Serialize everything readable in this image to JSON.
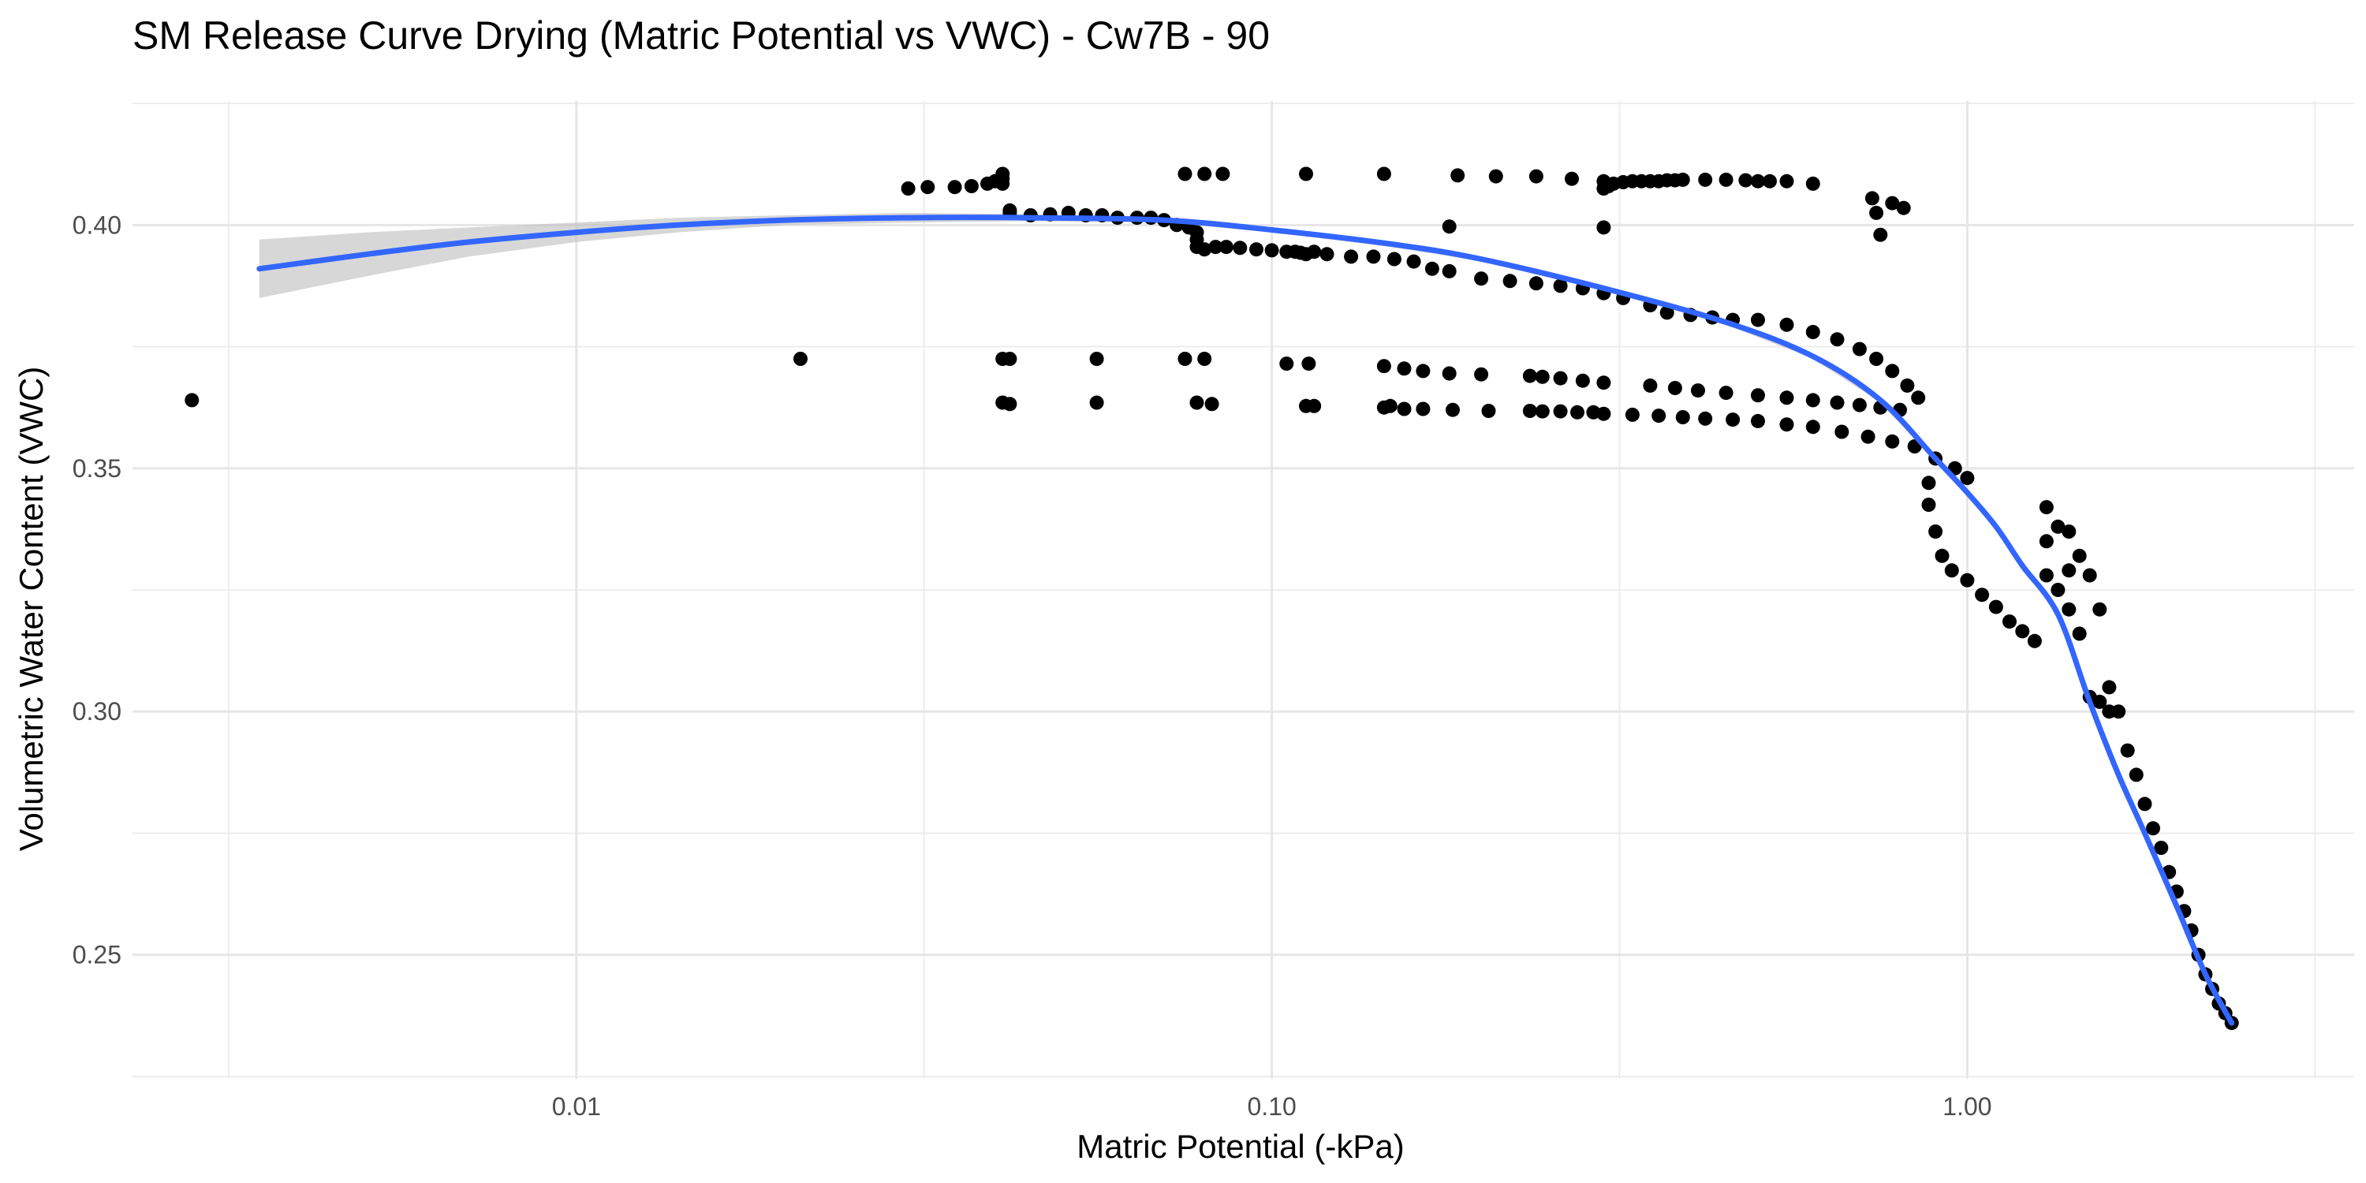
{
  "chart_data": {
    "type": "scatter",
    "title": "SM Release Curve Drying (Matric Potential vs VWC) - Cw7B - 90",
    "xlabel": "Matric Potential (-kPa)",
    "ylabel": "Volumetric Water Content (VWC)",
    "x_scale": "log10",
    "xlim": [
      0.0023,
      3.6
    ],
    "ylim": [
      0.2245,
      0.4255
    ],
    "x_ticks": [
      {
        "value": 0.01,
        "label": "0.01"
      },
      {
        "value": 0.1,
        "label": "0.10"
      },
      {
        "value": 1.0,
        "label": "1.00"
      }
    ],
    "x_minor_ticks": [
      0.003162,
      0.03162,
      0.3162,
      3.162
    ],
    "y_ticks": [
      {
        "value": 0.25,
        "label": "0.25"
      },
      {
        "value": 0.3,
        "label": "0.30"
      },
      {
        "value": 0.35,
        "label": "0.35"
      },
      {
        "value": 0.4,
        "label": "0.40"
      }
    ],
    "y_minor_ticks": [
      0.225,
      0.275,
      0.325,
      0.375,
      0.425
    ],
    "grid": true,
    "legend": "none",
    "point_color": "#000000",
    "trend": {
      "method": "smooth",
      "color": "#3366FF",
      "band_color": "#bdbdbd",
      "x": [
        0.0035,
        0.005,
        0.007,
        0.01,
        0.014,
        0.02,
        0.03,
        0.045,
        0.07,
        0.1,
        0.15,
        0.2,
        0.3,
        0.45,
        0.6,
        0.75,
        0.9,
        1.0,
        1.1,
        1.2,
        1.35,
        1.5,
        1.65,
        1.8,
        2.0,
        2.2,
        2.4
      ],
      "y": [
        0.391,
        0.394,
        0.3965,
        0.3985,
        0.4,
        0.401,
        0.4015,
        0.4015,
        0.401,
        0.399,
        0.396,
        0.393,
        0.387,
        0.38,
        0.373,
        0.364,
        0.352,
        0.345,
        0.338,
        0.33,
        0.32,
        0.302,
        0.287,
        0.275,
        0.26,
        0.246,
        0.236
      ],
      "upper": [
        0.397,
        0.3985,
        0.3995,
        0.4005,
        0.4015,
        0.402,
        0.4025,
        0.4022,
        0.4015,
        0.3995,
        0.3966,
        0.3935,
        0.3875,
        0.3805,
        0.3735,
        0.3645,
        0.3525,
        0.3455,
        0.3385,
        0.3305,
        0.3205,
        0.3025,
        0.2875,
        0.2755,
        0.2605,
        0.2467,
        0.2368
      ],
      "lower": [
        0.385,
        0.3895,
        0.3935,
        0.3965,
        0.3985,
        0.4,
        0.4005,
        0.4008,
        0.4005,
        0.3985,
        0.3954,
        0.3925,
        0.3865,
        0.3795,
        0.3725,
        0.3635,
        0.3515,
        0.3445,
        0.3375,
        0.3295,
        0.3195,
        0.3015,
        0.2865,
        0.2745,
        0.2595,
        0.2453,
        0.2352
      ]
    },
    "series": [
      {
        "x": [
          0.0028,
          0.021,
          0.041,
          0.042,
          0.056,
          0.075,
          0.08,
          0.105,
          0.113,
          0.145,
          0.155,
          0.165,
          0.18,
          0.2,
          0.235,
          0.245,
          0.26,
          0.28,
          0.3,
          0.35,
          0.38,
          0.41,
          0.45,
          0.5,
          0.55,
          0.6,
          0.65,
          0.7,
          0.75,
          0.8
        ],
        "y": [
          0.364,
          0.3725,
          0.3725,
          0.3725,
          0.3725,
          0.3725,
          0.3725,
          0.3715,
          0.3715,
          0.371,
          0.3705,
          0.37,
          0.3695,
          0.3693,
          0.369,
          0.3688,
          0.3685,
          0.368,
          0.3676,
          0.367,
          0.3665,
          0.366,
          0.3655,
          0.365,
          0.3645,
          0.364,
          0.3635,
          0.363,
          0.3625,
          0.362
        ]
      },
      {
        "x": [
          0.041,
          0.042,
          0.056,
          0.078,
          0.082,
          0.112,
          0.115,
          0.145,
          0.148,
          0.155,
          0.165,
          0.182,
          0.205,
          0.235,
          0.245,
          0.26,
          0.275,
          0.29,
          0.3,
          0.33,
          0.36,
          0.39,
          0.42,
          0.46,
          0.5,
          0.55,
          0.6,
          0.66,
          0.72,
          0.78,
          0.84,
          0.9,
          0.96,
          1.0
        ],
        "y": [
          0.3635,
          0.3632,
          0.3635,
          0.3635,
          0.3632,
          0.3628,
          0.3628,
          0.3625,
          0.3628,
          0.3622,
          0.3622,
          0.362,
          0.3618,
          0.3618,
          0.3617,
          0.3617,
          0.3615,
          0.3615,
          0.3612,
          0.361,
          0.3608,
          0.3605,
          0.3602,
          0.36,
          0.3597,
          0.359,
          0.3585,
          0.3575,
          0.3565,
          0.3555,
          0.3545,
          0.352,
          0.35,
          0.348
        ]
      },
      {
        "x": [
          0.03,
          0.032,
          0.035,
          0.037,
          0.039,
          0.04,
          0.041,
          0.041,
          0.041,
          0.042,
          0.042,
          0.045,
          0.048,
          0.051,
          0.054,
          0.057,
          0.06,
          0.064,
          0.067,
          0.07,
          0.073,
          0.076,
          0.078,
          0.078,
          0.078,
          0.08,
          0.083,
          0.086,
          0.09,
          0.095,
          0.1,
          0.105,
          0.108,
          0.11,
          0.112,
          0.115,
          0.12,
          0.13,
          0.14,
          0.15,
          0.16,
          0.17,
          0.18,
          0.2,
          0.22,
          0.24,
          0.26,
          0.28,
          0.3,
          0.32,
          0.35,
          0.37,
          0.4,
          0.43,
          0.46,
          0.5,
          0.55,
          0.6,
          0.65,
          0.7,
          0.74,
          0.78,
          0.82,
          0.85
        ],
        "y": [
          0.4075,
          0.4078,
          0.4078,
          0.408,
          0.4085,
          0.409,
          0.4095,
          0.4105,
          0.4085,
          0.403,
          0.4025,
          0.402,
          0.4022,
          0.4025,
          0.402,
          0.402,
          0.4015,
          0.4015,
          0.4015,
          0.401,
          0.4,
          0.3995,
          0.3985,
          0.397,
          0.3955,
          0.395,
          0.3955,
          0.3955,
          0.3953,
          0.395,
          0.3948,
          0.3945,
          0.3945,
          0.3943,
          0.394,
          0.3945,
          0.394,
          0.3935,
          0.3935,
          0.393,
          0.3925,
          0.391,
          0.3905,
          0.389,
          0.3885,
          0.388,
          0.3875,
          0.387,
          0.386,
          0.385,
          0.3835,
          0.382,
          0.3815,
          0.381,
          0.3805,
          0.3805,
          0.3795,
          0.378,
          0.3765,
          0.3745,
          0.3725,
          0.37,
          0.367,
          0.3645
        ]
      },
      {
        "x": [
          0.075,
          0.08,
          0.085,
          0.112,
          0.145,
          0.185,
          0.21,
          0.24,
          0.27,
          0.3,
          0.3,
          0.305,
          0.31,
          0.32,
          0.33,
          0.34,
          0.35,
          0.36,
          0.37,
          0.38,
          0.39,
          0.42,
          0.45,
          0.48,
          0.5,
          0.52,
          0.55,
          0.6,
          0.73,
          0.74,
          0.75,
          0.78,
          0.81
        ],
        "y": [
          0.4105,
          0.4105,
          0.4105,
          0.4105,
          0.4105,
          0.4102,
          0.41,
          0.41,
          0.4095,
          0.409,
          0.4075,
          0.408,
          0.4085,
          0.4088,
          0.409,
          0.409,
          0.409,
          0.409,
          0.4092,
          0.4092,
          0.4093,
          0.4093,
          0.4093,
          0.4092,
          0.409,
          0.409,
          0.409,
          0.4085,
          0.4055,
          0.4025,
          0.398,
          0.4045,
          0.4035
        ]
      },
      {
        "x": [
          0.18,
          0.3
        ],
        "y": [
          0.3997,
          0.3995
        ]
      },
      {
        "x": [
          0.88,
          0.88,
          0.9,
          0.92,
          0.95,
          1.0,
          1.05,
          1.1,
          1.15,
          1.2,
          1.25,
          1.3,
          1.3,
          1.3,
          1.35,
          1.35,
          1.4,
          1.4,
          1.4,
          1.45,
          1.45,
          1.5,
          1.5,
          1.55,
          1.55,
          1.6,
          1.6,
          1.65,
          1.7,
          1.75,
          1.8,
          1.85,
          1.9,
          1.95,
          2.0,
          2.05,
          2.1,
          2.15,
          2.2,
          2.25,
          2.3,
          2.35,
          2.4
        ],
        "y": [
          0.347,
          0.3425,
          0.337,
          0.332,
          0.329,
          0.327,
          0.324,
          0.3215,
          0.3185,
          0.3165,
          0.3145,
          0.342,
          0.335,
          0.328,
          0.338,
          0.325,
          0.337,
          0.329,
          0.321,
          0.332,
          0.316,
          0.328,
          0.303,
          0.321,
          0.302,
          0.305,
          0.3,
          0.3,
          0.292,
          0.287,
          0.281,
          0.276,
          0.272,
          0.267,
          0.263,
          0.259,
          0.255,
          0.25,
          0.246,
          0.243,
          0.24,
          0.238,
          0.236
        ]
      }
    ]
  }
}
